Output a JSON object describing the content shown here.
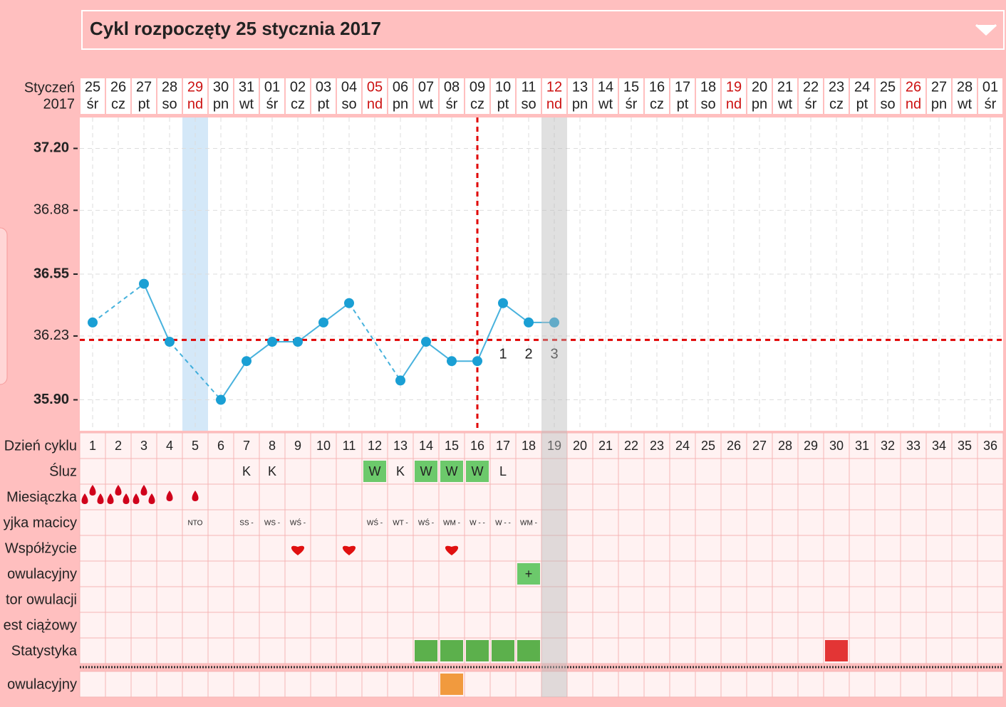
{
  "header": {
    "title": "Cykl rozpoczęty 25 stycznia 2017"
  },
  "calendar": {
    "month": "Styczeń",
    "year": "2017",
    "sunday_color": "#cc1111",
    "days": [
      {
        "date": "25",
        "weekday": "śr"
      },
      {
        "date": "26",
        "weekday": "cz"
      },
      {
        "date": "27",
        "weekday": "pt"
      },
      {
        "date": "28",
        "weekday": "so"
      },
      {
        "date": "29",
        "weekday": "nd",
        "sunday": true
      },
      {
        "date": "30",
        "weekday": "pn"
      },
      {
        "date": "31",
        "weekday": "wt"
      },
      {
        "date": "01",
        "weekday": "śr"
      },
      {
        "date": "02",
        "weekday": "cz"
      },
      {
        "date": "03",
        "weekday": "pt"
      },
      {
        "date": "04",
        "weekday": "so"
      },
      {
        "date": "05",
        "weekday": "nd",
        "sunday": true
      },
      {
        "date": "06",
        "weekday": "pn"
      },
      {
        "date": "07",
        "weekday": "wt"
      },
      {
        "date": "08",
        "weekday": "śr"
      },
      {
        "date": "09",
        "weekday": "cz"
      },
      {
        "date": "10",
        "weekday": "pt"
      },
      {
        "date": "11",
        "weekday": "so"
      },
      {
        "date": "12",
        "weekday": "nd",
        "sunday": true
      },
      {
        "date": "13",
        "weekday": "pn"
      },
      {
        "date": "14",
        "weekday": "wt"
      },
      {
        "date": "15",
        "weekday": "śr"
      },
      {
        "date": "16",
        "weekday": "cz"
      },
      {
        "date": "17",
        "weekday": "pt"
      },
      {
        "date": "18",
        "weekday": "so"
      },
      {
        "date": "19",
        "weekday": "nd",
        "sunday": true
      },
      {
        "date": "20",
        "weekday": "pn"
      },
      {
        "date": "21",
        "weekday": "wt"
      },
      {
        "date": "22",
        "weekday": "śr"
      },
      {
        "date": "23",
        "weekday": "cz"
      },
      {
        "date": "24",
        "weekday": "pt"
      },
      {
        "date": "25",
        "weekday": "so"
      },
      {
        "date": "26",
        "weekday": "nd",
        "sunday": true
      },
      {
        "date": "27",
        "weekday": "pn"
      },
      {
        "date": "28",
        "weekday": "wt"
      },
      {
        "date": "01",
        "weekday": "śr"
      }
    ]
  },
  "chart_data": {
    "type": "line",
    "color": "#1a9fd4",
    "categories": [
      1,
      2,
      3,
      4,
      5,
      6,
      7,
      8,
      9,
      10,
      11,
      12,
      13,
      14,
      15,
      16,
      17,
      18,
      19,
      20,
      21,
      22,
      23,
      24,
      25,
      26,
      27,
      28,
      29,
      30,
      31,
      32,
      33,
      34,
      35,
      36
    ],
    "values": [
      36.3,
      null,
      36.5,
      36.2,
      null,
      35.9,
      36.1,
      36.2,
      36.2,
      36.3,
      36.4,
      null,
      36.0,
      36.2,
      36.1,
      36.1,
      36.4,
      36.3,
      36.3,
      null,
      null,
      null,
      null,
      null,
      null,
      null,
      null,
      null,
      null,
      null,
      null,
      null,
      null,
      null,
      null,
      null
    ],
    "ylim": [
      35.74,
      37.36
    ],
    "yticks": [
      {
        "value": 35.9,
        "label": "35.90"
      },
      {
        "value": 36.23,
        "label": "36.23"
      },
      {
        "value": 36.55,
        "label": "36.55"
      },
      {
        "value": 36.88,
        "label": "36.88"
      },
      {
        "value": 37.2,
        "label": "37.20"
      }
    ],
    "bold_ticks": [
      0,
      2,
      4
    ],
    "grid": true,
    "coverline": 36.21,
    "ovulation_day": 16,
    "luteal_labels": [
      1,
      2,
      3
    ],
    "period_highlight_day": 5,
    "today_day": 19
  },
  "cycle_row_label": "Dzień cyklu",
  "rows": [
    {
      "label": "Śluz",
      "kind": "text",
      "entries": [
        {
          "day": 7,
          "text": "K"
        },
        {
          "day": 8,
          "text": "K"
        },
        {
          "day": 12,
          "text": "W",
          "color": "#5cc45c"
        },
        {
          "day": 13,
          "text": "K"
        },
        {
          "day": 14,
          "text": "W",
          "color": "#5cc45c"
        },
        {
          "day": 15,
          "text": "W",
          "color": "#5cc45c"
        },
        {
          "day": 16,
          "text": "W",
          "color": "#5cc45c"
        },
        {
          "day": 17,
          "text": "L"
        }
      ]
    },
    {
      "label": "Miesiączka",
      "kind": "drops",
      "entries": [
        {
          "day": 1,
          "drops": 3
        },
        {
          "day": 2,
          "drops": 3
        },
        {
          "day": 3,
          "drops": 3
        },
        {
          "day": 4,
          "drops": 1
        },
        {
          "day": 5,
          "drops": 1
        }
      ]
    },
    {
      "label": "yjka macicy",
      "kind": "small",
      "entries": [
        {
          "day": 5,
          "text": "NTO"
        },
        {
          "day": 7,
          "text": "SS -"
        },
        {
          "day": 8,
          "text": "WS -"
        },
        {
          "day": 9,
          "text": "WŚ -"
        },
        {
          "day": 12,
          "text": "WŚ -"
        },
        {
          "day": 13,
          "text": "WT -"
        },
        {
          "day": 14,
          "text": "WŚ -"
        },
        {
          "day": 15,
          "text": "WM -"
        },
        {
          "day": 16,
          "text": "W - -"
        },
        {
          "day": 17,
          "text": "W - -"
        },
        {
          "day": 18,
          "text": "WM -"
        }
      ]
    },
    {
      "label": "Współżycie",
      "kind": "heart",
      "entries": [
        {
          "day": 9
        },
        {
          "day": 11
        },
        {
          "day": 15
        }
      ]
    },
    {
      "label": "owulacyjny",
      "kind": "text",
      "entries": [
        {
          "day": 18,
          "text": "+",
          "color": "#5cc45c"
        }
      ]
    },
    {
      "label": "tor owulacji",
      "kind": "text",
      "entries": []
    },
    {
      "label": "est ciążowy",
      "kind": "text",
      "entries": []
    },
    {
      "label": "Statystyka",
      "kind": "fill",
      "entries": [
        {
          "day": 14,
          "color": "#4aa83a"
        },
        {
          "day": 15,
          "color": "#4aa83a"
        },
        {
          "day": 16,
          "color": "#4aa83a"
        },
        {
          "day": 17,
          "color": "#4aa83a"
        },
        {
          "day": 18,
          "color": "#4aa83a"
        },
        {
          "day": 30,
          "color": "#e02020"
        }
      ]
    }
  ],
  "bottom_row": {
    "label": "owulacyjny",
    "kind": "fill",
    "entries": [
      {
        "day": 15,
        "color": "#f0902a"
      }
    ]
  }
}
